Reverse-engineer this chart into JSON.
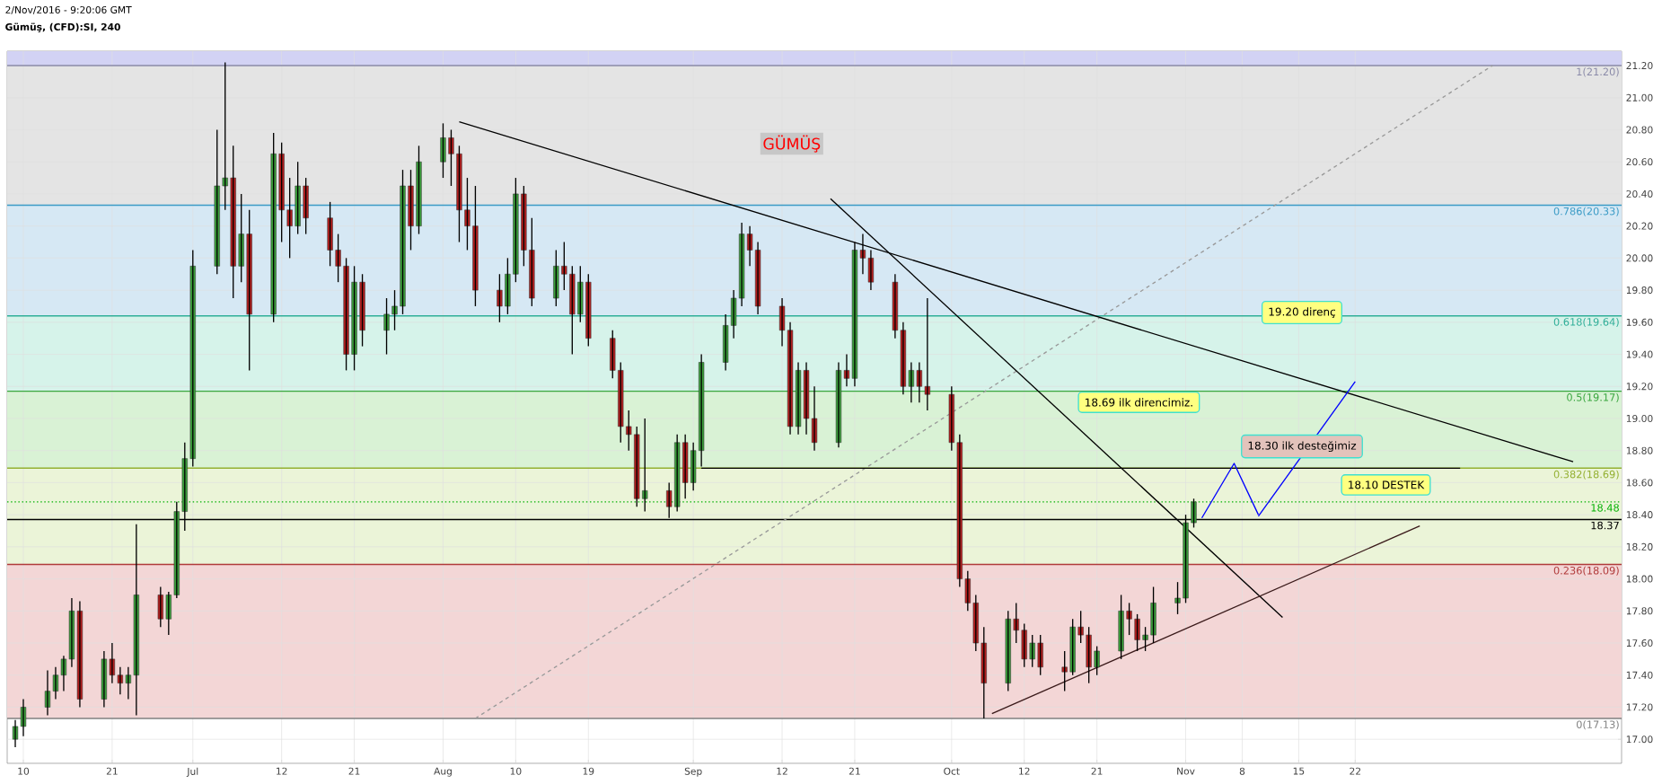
{
  "chart_data": {
    "type": "candlestick",
    "title": "Gümüş, (CFD):SI, 240",
    "subtitle": "2/Nov/2016 - 9:20:06 GMT",
    "x": [
      "2016-06-09",
      "2016-06-10",
      "2016-06-13",
      "2016-06-14",
      "2016-06-15",
      "2016-06-16",
      "2016-06-17",
      "2016-06-20",
      "2016-06-21",
      "2016-06-22",
      "2016-06-23",
      "2016-06-24",
      "2016-06-27",
      "2016-06-28",
      "2016-06-29",
      "2016-06-30",
      "2016-07-01",
      "2016-07-04",
      "2016-07-05",
      "2016-07-06",
      "2016-07-07",
      "2016-07-08",
      "2016-07-11",
      "2016-07-12",
      "2016-07-13",
      "2016-07-14",
      "2016-07-15",
      "2016-07-18",
      "2016-07-19",
      "2016-07-20",
      "2016-07-21",
      "2016-07-22",
      "2016-07-25",
      "2016-07-26",
      "2016-07-27",
      "2016-07-28",
      "2016-07-29",
      "2016-08-01",
      "2016-08-02",
      "2016-08-03",
      "2016-08-04",
      "2016-08-05",
      "2016-08-08",
      "2016-08-09",
      "2016-08-10",
      "2016-08-11",
      "2016-08-12",
      "2016-08-15",
      "2016-08-16",
      "2016-08-17",
      "2016-08-18",
      "2016-08-19",
      "2016-08-22",
      "2016-08-23",
      "2016-08-24",
      "2016-08-25",
      "2016-08-26",
      "2016-08-29",
      "2016-08-30",
      "2016-08-31",
      "2016-09-01",
      "2016-09-02",
      "2016-09-05",
      "2016-09-06",
      "2016-09-07",
      "2016-09-08",
      "2016-09-09",
      "2016-09-12",
      "2016-09-13",
      "2016-09-14",
      "2016-09-15",
      "2016-09-16",
      "2016-09-19",
      "2016-09-20",
      "2016-09-21",
      "2016-09-22",
      "2016-09-23",
      "2016-09-26",
      "2016-09-27",
      "2016-09-28",
      "2016-09-29",
      "2016-09-30",
      "2016-10-03",
      "2016-10-04",
      "2016-10-05",
      "2016-10-06",
      "2016-10-07",
      "2016-10-10",
      "2016-10-11",
      "2016-10-12",
      "2016-10-13",
      "2016-10-14",
      "2016-10-17",
      "2016-10-18",
      "2016-10-19",
      "2016-10-20",
      "2016-10-21",
      "2016-10-24",
      "2016-10-25",
      "2016-10-26",
      "2016-10-27",
      "2016-10-28",
      "2016-10-31",
      "2016-11-01",
      "2016-11-02"
    ],
    "ohlc": [
      [
        17.0,
        17.12,
        16.95,
        17.08
      ],
      [
        17.08,
        17.25,
        17.02,
        17.2
      ],
      [
        17.2,
        17.43,
        17.15,
        17.3
      ],
      [
        17.3,
        17.45,
        17.25,
        17.4
      ],
      [
        17.4,
        17.52,
        17.3,
        17.5
      ],
      [
        17.5,
        17.88,
        17.45,
        17.8
      ],
      [
        17.8,
        17.86,
        17.2,
        17.25
      ],
      [
        17.25,
        17.55,
        17.2,
        17.5
      ],
      [
        17.5,
        17.6,
        17.35,
        17.4
      ],
      [
        17.4,
        17.45,
        17.28,
        17.35
      ],
      [
        17.35,
        17.45,
        17.25,
        17.4
      ],
      [
        17.4,
        18.34,
        17.15,
        17.9
      ],
      [
        17.9,
        17.95,
        17.7,
        17.75
      ],
      [
        17.75,
        17.92,
        17.65,
        17.9
      ],
      [
        17.9,
        18.48,
        17.88,
        18.42
      ],
      [
        18.42,
        18.85,
        18.3,
        18.75
      ],
      [
        18.75,
        20.05,
        18.7,
        19.95
      ],
      [
        19.95,
        20.8,
        19.9,
        20.45
      ],
      [
        20.45,
        21.22,
        20.3,
        20.5
      ],
      [
        20.5,
        20.7,
        19.75,
        19.95
      ],
      [
        19.95,
        20.4,
        19.85,
        20.15
      ],
      [
        20.15,
        20.3,
        19.3,
        19.65
      ],
      [
        19.65,
        20.78,
        19.6,
        20.65
      ],
      [
        20.65,
        20.72,
        20.1,
        20.3
      ],
      [
        20.3,
        20.5,
        20.0,
        20.2
      ],
      [
        20.2,
        20.6,
        20.15,
        20.45
      ],
      [
        20.45,
        20.5,
        20.15,
        20.25
      ],
      [
        20.25,
        20.35,
        19.95,
        20.05
      ],
      [
        20.05,
        20.15,
        19.85,
        19.95
      ],
      [
        19.95,
        20.0,
        19.3,
        19.4
      ],
      [
        19.4,
        19.95,
        19.3,
        19.85
      ],
      [
        19.85,
        19.9,
        19.45,
        19.55
      ],
      [
        19.55,
        19.75,
        19.4,
        19.65
      ],
      [
        19.65,
        19.8,
        19.55,
        19.7
      ],
      [
        19.7,
        20.55,
        19.65,
        20.45
      ],
      [
        20.45,
        20.55,
        20.05,
        20.2
      ],
      [
        20.2,
        20.7,
        20.15,
        20.6
      ],
      [
        20.6,
        20.84,
        20.5,
        20.75
      ],
      [
        20.75,
        20.8,
        20.45,
        20.65
      ],
      [
        20.65,
        20.7,
        20.1,
        20.3
      ],
      [
        20.3,
        20.5,
        20.05,
        20.2
      ],
      [
        20.2,
        20.45,
        19.7,
        19.8
      ],
      [
        19.8,
        19.9,
        19.6,
        19.7
      ],
      [
        19.7,
        20.0,
        19.65,
        19.9
      ],
      [
        19.9,
        20.5,
        19.85,
        20.4
      ],
      [
        20.4,
        20.45,
        19.95,
        20.05
      ],
      [
        20.05,
        20.25,
        19.7,
        19.75
      ],
      [
        19.75,
        20.05,
        19.7,
        19.95
      ],
      [
        19.95,
        20.1,
        19.8,
        19.9
      ],
      [
        19.9,
        19.95,
        19.4,
        19.65
      ],
      [
        19.65,
        19.95,
        19.6,
        19.85
      ],
      [
        19.85,
        19.9,
        19.45,
        19.5
      ],
      [
        19.5,
        19.55,
        19.25,
        19.3
      ],
      [
        19.3,
        19.35,
        18.85,
        18.95
      ],
      [
        18.95,
        19.05,
        18.8,
        18.9
      ],
      [
        18.9,
        18.95,
        18.45,
        18.5
      ],
      [
        18.5,
        19.0,
        18.42,
        18.55
      ],
      [
        18.55,
        18.6,
        18.38,
        18.45
      ],
      [
        18.45,
        18.9,
        18.42,
        18.85
      ],
      [
        18.85,
        18.9,
        18.5,
        18.6
      ],
      [
        18.6,
        18.85,
        18.55,
        18.8
      ],
      [
        18.8,
        19.4,
        18.7,
        19.35
      ],
      [
        19.35,
        19.65,
        19.3,
        19.58
      ],
      [
        19.58,
        19.8,
        19.5,
        19.75
      ],
      [
        19.75,
        20.22,
        19.7,
        20.15
      ],
      [
        20.15,
        20.2,
        19.95,
        20.05
      ],
      [
        20.05,
        20.1,
        19.65,
        19.7
      ],
      [
        19.7,
        19.75,
        19.45,
        19.55
      ],
      [
        19.55,
        19.6,
        18.9,
        18.95
      ],
      [
        18.95,
        19.35,
        18.9,
        19.3
      ],
      [
        19.3,
        19.35,
        18.9,
        19.0
      ],
      [
        19.0,
        19.2,
        18.8,
        18.85
      ],
      [
        18.85,
        19.35,
        18.82,
        19.3
      ],
      [
        19.3,
        19.4,
        19.2,
        19.25
      ],
      [
        19.25,
        20.1,
        19.2,
        20.05
      ],
      [
        20.05,
        20.15,
        19.9,
        20.0
      ],
      [
        20.0,
        20.05,
        19.8,
        19.85
      ],
      [
        19.85,
        19.9,
        19.5,
        19.55
      ],
      [
        19.55,
        19.6,
        19.15,
        19.2
      ],
      [
        19.2,
        19.35,
        19.1,
        19.3
      ],
      [
        19.3,
        19.35,
        19.1,
        19.2
      ],
      [
        19.2,
        19.75,
        19.05,
        19.15
      ],
      [
        19.15,
        19.2,
        18.8,
        18.85
      ],
      [
        18.85,
        18.9,
        17.95,
        18.0
      ],
      [
        18.0,
        18.05,
        17.8,
        17.85
      ],
      [
        17.85,
        17.9,
        17.55,
        17.6
      ],
      [
        17.6,
        17.7,
        17.13,
        17.35
      ],
      [
        17.35,
        17.8,
        17.3,
        17.75
      ],
      [
        17.75,
        17.85,
        17.6,
        17.68
      ],
      [
        17.68,
        17.72,
        17.45,
        17.5
      ],
      [
        17.5,
        17.65,
        17.45,
        17.6
      ],
      [
        17.6,
        17.65,
        17.4,
        17.45
      ],
      [
        17.45,
        17.55,
        17.3,
        17.42
      ],
      [
        17.42,
        17.75,
        17.4,
        17.7
      ],
      [
        17.7,
        17.8,
        17.6,
        17.65
      ],
      [
        17.65,
        17.7,
        17.35,
        17.45
      ],
      [
        17.45,
        17.58,
        17.4,
        17.55
      ],
      [
        17.55,
        17.9,
        17.5,
        17.8
      ],
      [
        17.8,
        17.85,
        17.65,
        17.75
      ],
      [
        17.75,
        17.78,
        17.55,
        17.62
      ],
      [
        17.62,
        17.7,
        17.55,
        17.65
      ],
      [
        17.65,
        17.95,
        17.6,
        17.85
      ],
      [
        17.85,
        17.98,
        17.78,
        17.88
      ],
      [
        17.88,
        18.4,
        17.85,
        18.35
      ],
      [
        18.35,
        18.5,
        18.32,
        18.48
      ]
    ],
    "series": [
      {
        "type": "line",
        "color": "#999999",
        "line_style": "dashed",
        "x": [
          "2016-08-05",
          "2016-12-09"
        ],
        "values": [
          17.13,
          21.2
        ]
      },
      {
        "type": "line",
        "color": "#000000",
        "x": [
          "2016-08-03",
          "2016-12-19"
        ],
        "values": [
          20.85,
          18.73
        ]
      },
      {
        "type": "line",
        "color": "#000000",
        "x": [
          "2016-09-18",
          "2016-11-13"
        ],
        "values": [
          20.37,
          17.76
        ]
      },
      {
        "type": "line",
        "color": "#3a1a1a",
        "x": [
          "2016-10-08",
          "2016-11-30"
        ],
        "values": [
          17.16,
          18.33
        ]
      },
      {
        "type": "line",
        "color": "#000000",
        "x": [
          "2016-09-02",
          "2016-12-05"
        ],
        "values": [
          18.69,
          18.69
        ]
      },
      {
        "type": "line",
        "color": "#0000ff",
        "x": [
          "2016-11-03",
          "2016-11-07",
          "2016-11-10"
        ],
        "values": [
          18.38,
          18.72,
          18.4
        ]
      },
      {
        "type": "line",
        "color": "#0000ff",
        "x": [
          "2016-11-10",
          "2016-11-22"
        ],
        "values": [
          18.39,
          19.23
        ]
      }
    ],
    "xlim": [
      "2016-06-08",
      "2016-12-25"
    ],
    "ylim": [
      16.85,
      21.29
    ],
    "xticks": [
      {
        "value": "2016-06-10",
        "label": "10"
      },
      {
        "value": "2016-06-21",
        "label": "21"
      },
      {
        "value": "2016-07-01",
        "label": "Jul"
      },
      {
        "value": "2016-07-12",
        "label": "12"
      },
      {
        "value": "2016-07-21",
        "label": "21"
      },
      {
        "value": "2016-08-01",
        "label": "Aug"
      },
      {
        "value": "2016-08-10",
        "label": "10"
      },
      {
        "value": "2016-08-19",
        "label": "19"
      },
      {
        "value": "2016-09-01",
        "label": "Sep"
      },
      {
        "value": "2016-09-12",
        "label": "12"
      },
      {
        "value": "2016-09-21",
        "label": "21"
      },
      {
        "value": "2016-10-03",
        "label": "Oct"
      },
      {
        "value": "2016-10-12",
        "label": "12"
      },
      {
        "value": "2016-10-21",
        "label": "21"
      },
      {
        "value": "2016-11-01",
        "label": "Nov"
      },
      {
        "value": "2016-11-08",
        "label": "8"
      },
      {
        "value": "2016-11-15",
        "label": "15"
      },
      {
        "value": "2016-11-22",
        "label": "22"
      }
    ],
    "yticks": [
      {
        "value": 17.0,
        "label": "17.00"
      },
      {
        "value": 17.2,
        "label": "17.20"
      },
      {
        "value": 17.4,
        "label": "17.40"
      },
      {
        "value": 17.6,
        "label": "17.60"
      },
      {
        "value": 17.8,
        "label": "17.80"
      },
      {
        "value": 18.0,
        "label": "18.00"
      },
      {
        "value": 18.2,
        "label": "18.20"
      },
      {
        "value": 18.4,
        "label": "18.40"
      },
      {
        "value": 18.6,
        "label": "18.60"
      },
      {
        "value": 18.8,
        "label": "18.80"
      },
      {
        "value": 19.0,
        "label": "19.00"
      },
      {
        "value": 19.2,
        "label": "19.20"
      },
      {
        "value": 19.4,
        "label": "19.40"
      },
      {
        "value": 19.6,
        "label": "19.60"
      },
      {
        "value": 19.8,
        "label": "19.80"
      },
      {
        "value": 20.0,
        "label": "20.00"
      },
      {
        "value": 20.2,
        "label": "20.20"
      },
      {
        "value": 20.4,
        "label": "20.40"
      },
      {
        "value": 20.6,
        "label": "20.60"
      },
      {
        "value": 20.8,
        "label": "20.80"
      },
      {
        "value": 21.0,
        "label": "21.00"
      },
      {
        "value": 21.2,
        "label": "21.20"
      }
    ],
    "grid": true,
    "bands": [
      {
        "axis": "y",
        "from": 21.2,
        "to": 21.29,
        "color": "#d2d2f4"
      },
      {
        "axis": "y",
        "from": 20.33,
        "to": 21.2,
        "color": "#e4e4e4"
      },
      {
        "axis": "y",
        "from": 19.64,
        "to": 20.33,
        "color": "#d6e8f4"
      },
      {
        "axis": "y",
        "from": 19.17,
        "to": 19.64,
        "color": "#d6f3ea"
      },
      {
        "axis": "y",
        "from": 18.69,
        "to": 19.17,
        "color": "#d9f2d5"
      },
      {
        "axis": "y",
        "from": 18.09,
        "to": 18.69,
        "color": "#ebf4d8"
      },
      {
        "axis": "y",
        "from": 17.13,
        "to": 18.09,
        "color": "#f3d6d6"
      }
    ],
    "ref_lines": [
      {
        "axis": "y",
        "value": 21.2,
        "label": "1(21.20)",
        "color": "#8a8aa8"
      },
      {
        "axis": "y",
        "value": 20.33,
        "label": "0.786(20.33)",
        "color": "#3b9bc6"
      },
      {
        "axis": "y",
        "value": 19.64,
        "label": "0.618(19.64)",
        "color": "#2fae98"
      },
      {
        "axis": "y",
        "value": 19.17,
        "label": "0.5(19.17)",
        "color": "#3aa63f"
      },
      {
        "axis": "y",
        "value": 18.69,
        "label": "0.382(18.69)",
        "color": "#94b032"
      },
      {
        "axis": "y",
        "value": 18.09,
        "label": "0.236(18.09)",
        "color": "#b03a3a"
      },
      {
        "axis": "y",
        "value": 17.13,
        "label": "0(17.13)",
        "color": "#808080"
      },
      {
        "axis": "y",
        "value": 18.48,
        "label": "18.48",
        "color": "#00b000",
        "line_style": "dotted"
      },
      {
        "axis": "y",
        "value": 18.37,
        "label": "18.37",
        "color": "#000000"
      }
    ],
    "annotations": [
      "GÜMÜŞ",
      "18.69 ilk direncimiz.",
      "19.20 direnç",
      "18.30 ilk desteğimiz",
      "18.10 DESTEK"
    ]
  }
}
